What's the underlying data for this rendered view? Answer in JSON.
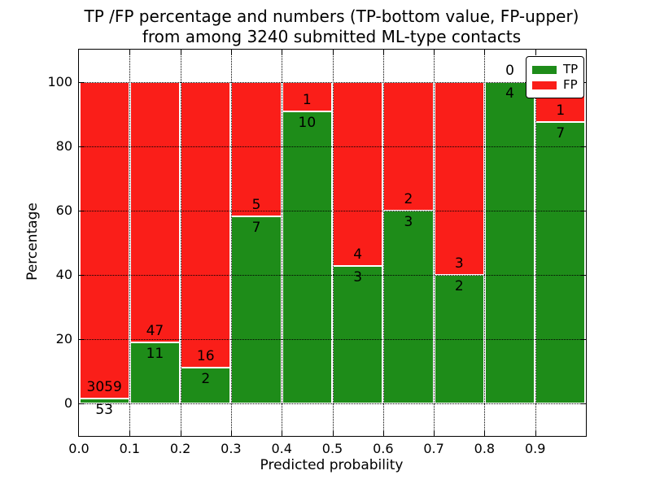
{
  "figure": {
    "title_line1": "TP /FP percentage and numbers (TP-bottom value, FP-upper)",
    "title_line2": "from among 3240 submitted ML-type contacts",
    "xlabel": "Predicted probability",
    "ylabel": "Percentage"
  },
  "legend": {
    "position": "upper right",
    "items": [
      {
        "label": "TP",
        "color": "#1E8C19"
      },
      {
        "label": "FP",
        "color": "#FA1E19"
      }
    ]
  },
  "colors": {
    "tp": "#1E8C19",
    "fp": "#FA1E19",
    "grid": "#000000",
    "background": "#FFFFFF",
    "bar_edge": "#FFFFFF"
  },
  "chart_data": {
    "type": "bar",
    "stacked": true,
    "title": "TP /FP percentage and numbers (TP-bottom value, FP-upper)\nfrom among 3240 submitted ML-type contacts",
    "xlabel": "Predicted probability",
    "ylabel": "Percentage",
    "total_contacts": 3240,
    "xlim": [
      0.0,
      1.0
    ],
    "ylim": [
      -10,
      110
    ],
    "x_tick_values": [
      0.0,
      0.1,
      0.2,
      0.3,
      0.4,
      0.5,
      0.6,
      0.7,
      0.8,
      0.9
    ],
    "x_tick_labels": [
      "0.0",
      "0.1",
      "0.2",
      "0.3",
      "0.4",
      "0.5",
      "0.6",
      "0.7",
      "0.8",
      "0.9"
    ],
    "y_tick_values": [
      0,
      20,
      40,
      60,
      80,
      100
    ],
    "y_tick_labels": [
      "0",
      "20",
      "40",
      "60",
      "80",
      "100"
    ],
    "grid": "dotted, both axes, drawn over bars",
    "legend_position": "upper right",
    "categories": [
      "0.0-0.1",
      "0.1-0.2",
      "0.2-0.3",
      "0.3-0.4",
      "0.4-0.5",
      "0.5-0.6",
      "0.6-0.7",
      "0.7-0.8",
      "0.8-0.9",
      "0.9-1.0"
    ],
    "series": [
      {
        "name": "TP",
        "color": "#1E8C19",
        "counts": [
          53,
          11,
          2,
          7,
          10,
          3,
          3,
          2,
          4,
          7
        ],
        "percentages": [
          1.7,
          18.97,
          11.11,
          58.33,
          90.91,
          42.86,
          60.0,
          40.0,
          100.0,
          87.5
        ]
      },
      {
        "name": "FP",
        "color": "#FA1E19",
        "counts": [
          3059,
          47,
          16,
          5,
          1,
          4,
          2,
          3,
          0,
          1
        ],
        "percentages": [
          98.3,
          81.03,
          88.89,
          41.67,
          9.09,
          57.14,
          40.0,
          60.0,
          0.0,
          12.5
        ]
      }
    ]
  }
}
